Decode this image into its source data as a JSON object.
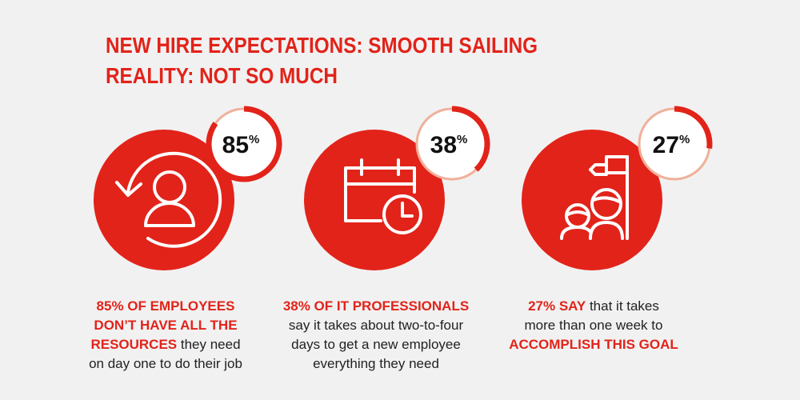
{
  "header": {
    "title_lines": [
      "NEW HIRE EXPECTATIONS: SMOOTH SAILING",
      "REALITY: NOT SO MUCH"
    ]
  },
  "stats": [
    {
      "value": 85,
      "percent_sign": "%",
      "caption_lines": [
        [
          {
            "text": "85% OF EMPLOYEES",
            "emphasis": true
          }
        ],
        [
          {
            "text": "DON’T HAVE ALL THE",
            "emphasis": true
          }
        ],
        [
          {
            "text": "RESOURCES",
            "emphasis": true
          },
          {
            "text": " they need",
            "emphasis": false
          }
        ],
        [
          {
            "text": "on day one to do their job",
            "emphasis": false
          }
        ]
      ]
    },
    {
      "value": 38,
      "percent_sign": "%",
      "caption_lines": [
        [
          {
            "text": "38% OF IT PROFESSIONALS",
            "emphasis": true
          }
        ],
        [
          {
            "text": "say it takes about two-to-four",
            "emphasis": false
          }
        ],
        [
          {
            "text": "days to get a new employee",
            "emphasis": false
          }
        ],
        [
          {
            "text": "everything they need",
            "emphasis": false
          }
        ]
      ]
    },
    {
      "value": 27,
      "percent_sign": "%",
      "caption_lines": [
        [
          {
            "text": "27% SAY",
            "emphasis": true
          },
          {
            "text": " that it takes",
            "emphasis": false
          }
        ],
        [
          {
            "text": "more than one week to",
            "emphasis": false
          }
        ],
        [
          {
            "text": "ACCOMPLISH THIS GOAL",
            "emphasis": true
          }
        ]
      ]
    }
  ]
}
